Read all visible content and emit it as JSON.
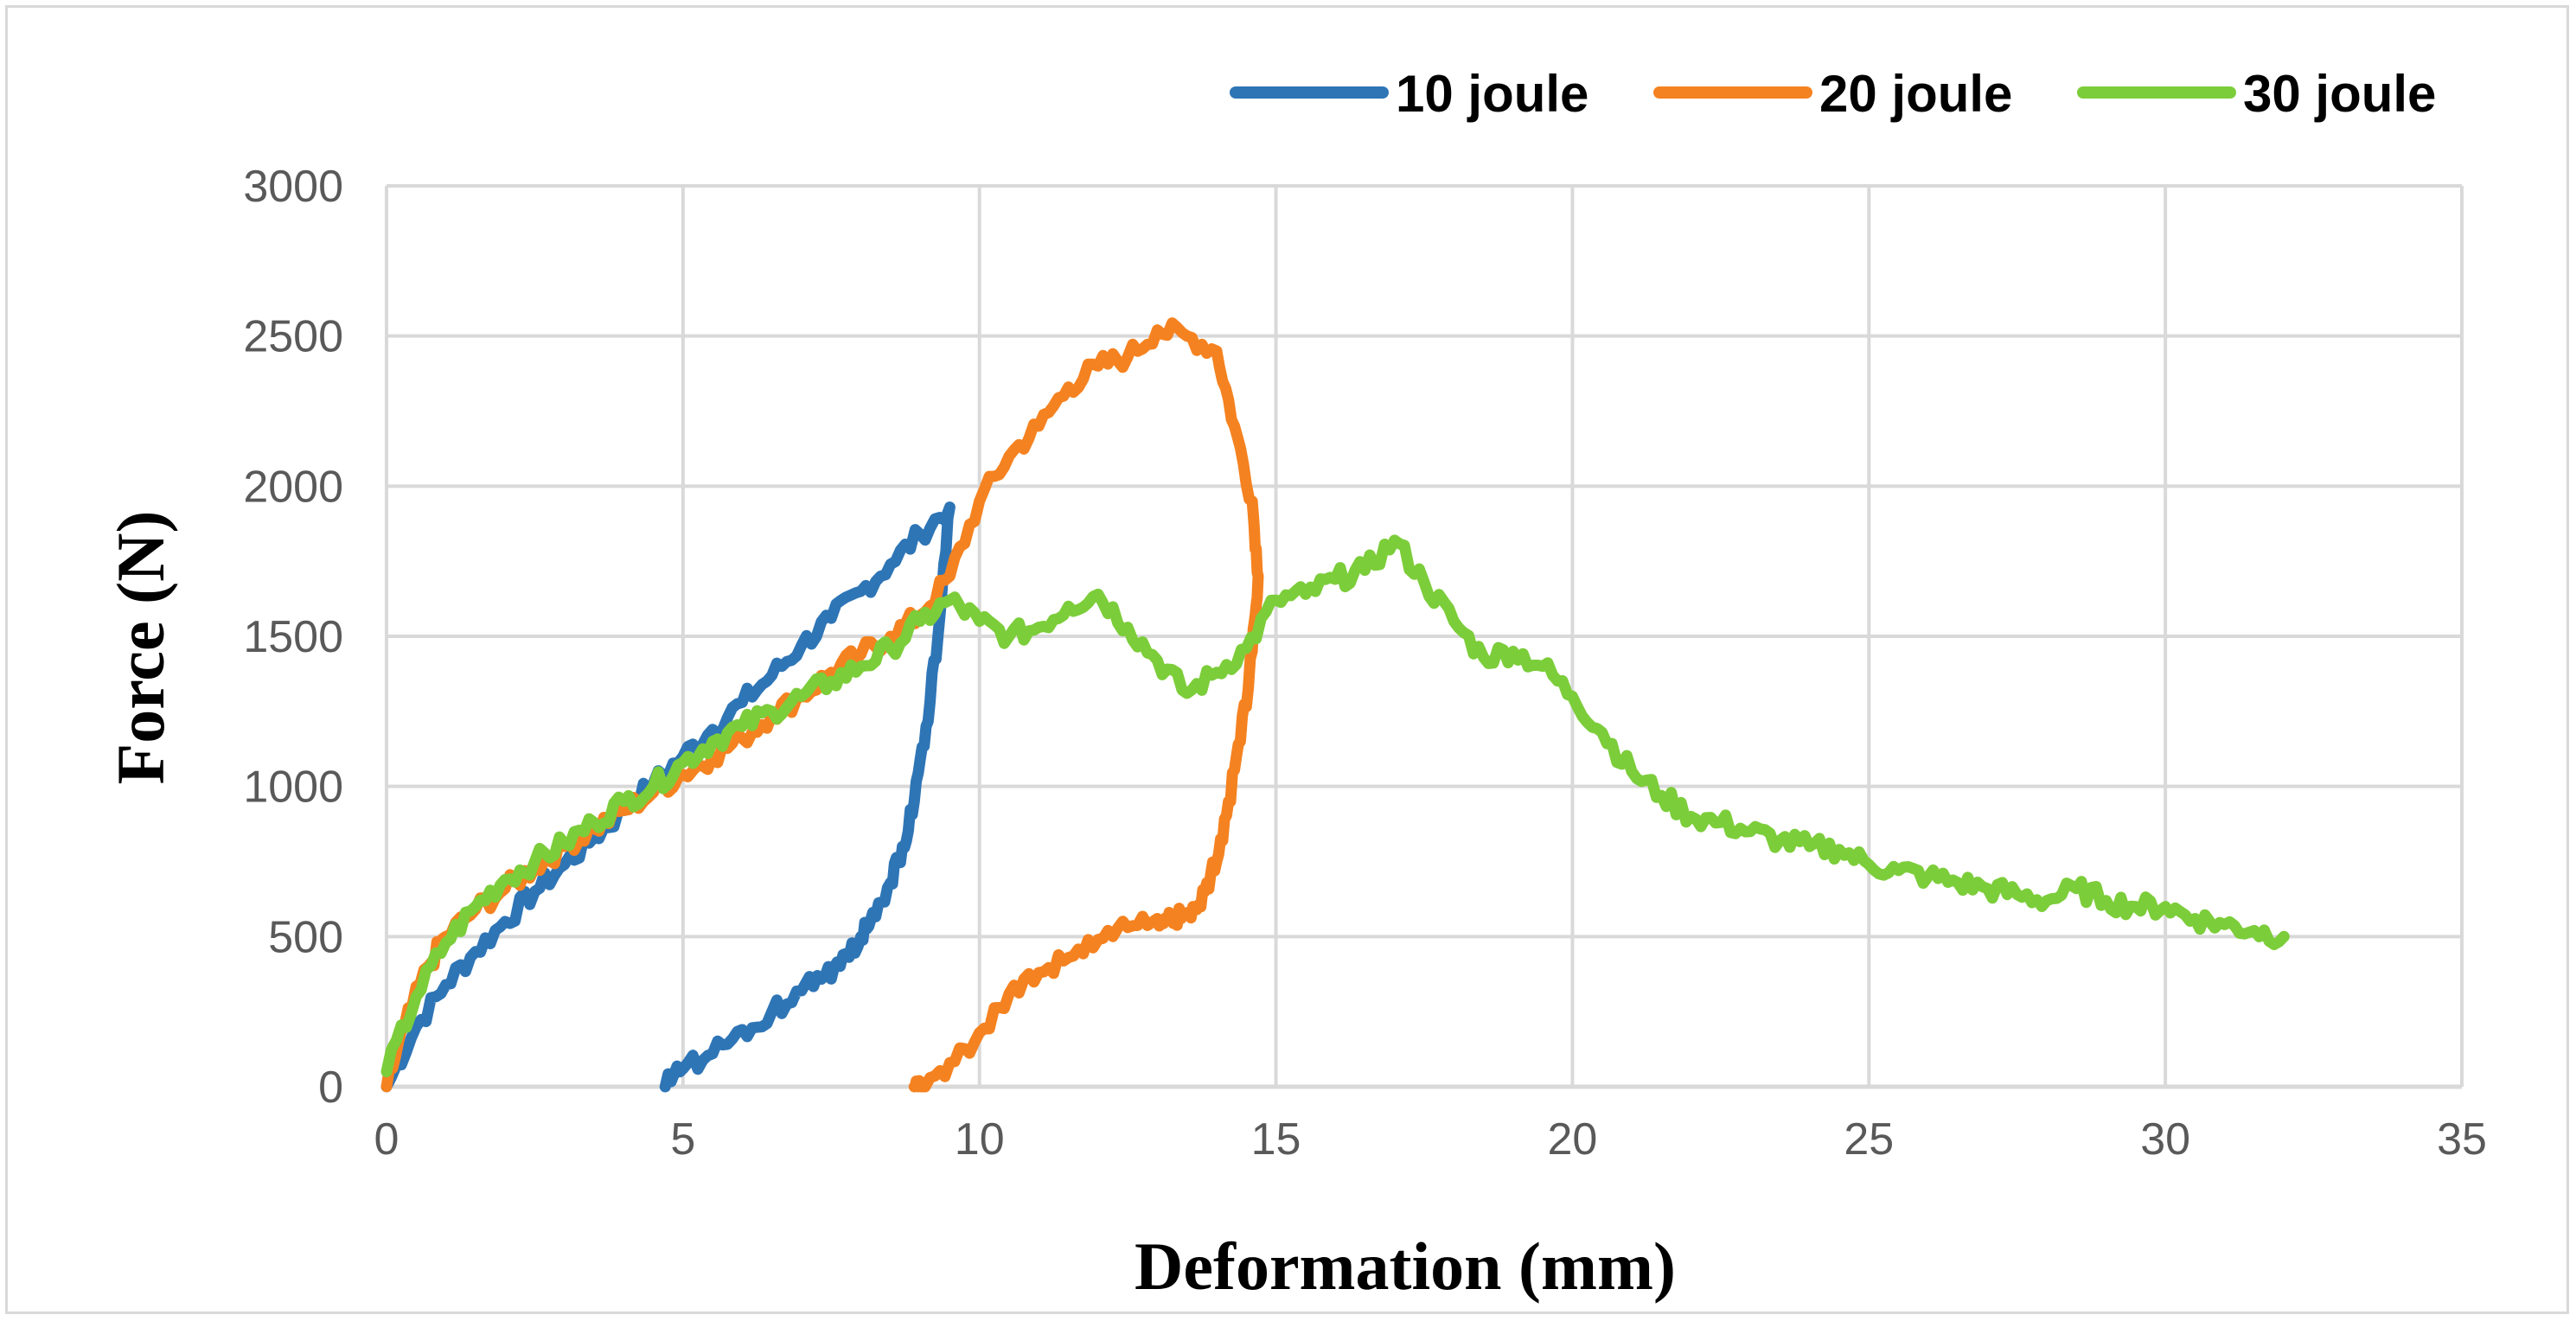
{
  "chart_data": {
    "type": "line",
    "title": "",
    "xlabel": "Deformation (mm)",
    "ylabel": "Force (N)",
    "xlim": [
      0,
      35
    ],
    "ylim": [
      0,
      3000
    ],
    "x_ticks": [
      0,
      5,
      10,
      15,
      20,
      25,
      30,
      35
    ],
    "y_ticks": [
      0,
      500,
      1000,
      1500,
      2000,
      2500,
      3000
    ],
    "grid": true,
    "legend_position": "top-right",
    "series": [
      {
        "name": "10 joule",
        "color": "#2e75b6",
        "x": [
          0,
          0.5,
          1,
          1.5,
          2,
          2.5,
          3,
          3.5,
          4,
          4.5,
          5,
          5.5,
          6,
          6.5,
          7,
          7.5,
          8,
          8.5,
          9,
          9.5,
          9.3,
          9.1,
          8.9,
          8.7,
          8.5,
          8.2,
          8.0,
          7.7,
          7.4,
          7.0,
          6.5,
          6.0,
          5.5,
          5.0,
          4.7
        ],
        "y": [
          0,
          200,
          340,
          450,
          550,
          650,
          740,
          830,
          920,
          1010,
          1100,
          1190,
          1280,
          1370,
          1470,
          1560,
          1650,
          1740,
          1840,
          1930,
          1500,
          1200,
          950,
          800,
          680,
          580,
          500,
          440,
          370,
          320,
          250,
          190,
          110,
          60,
          0
        ]
      },
      {
        "name": "20 joule",
        "color": "#f58220",
        "x": [
          0,
          0.3,
          0.7,
          1,
          1.5,
          2,
          2.5,
          3,
          3.5,
          4,
          4.5,
          5,
          5.5,
          6,
          6.5,
          7,
          7.5,
          8,
          8.5,
          9,
          9.5,
          10,
          10.5,
          11,
          11.5,
          12,
          12.5,
          13,
          13.5,
          14,
          14.3,
          14.6,
          14.7,
          14.6,
          14.4,
          14.2,
          14.0,
          13.8,
          13.6,
          13.4,
          13.2,
          13.0,
          12.5,
          12.0,
          11.5,
          11.0,
          10.5,
          10.0,
          9.5,
          9.0,
          8.9
        ],
        "y": [
          0,
          200,
          400,
          500,
          590,
          660,
          730,
          800,
          860,
          920,
          980,
          1040,
          1100,
          1160,
          1240,
          1300,
          1380,
          1440,
          1500,
          1570,
          1700,
          1950,
          2100,
          2200,
          2330,
          2400,
          2430,
          2520,
          2500,
          2450,
          2200,
          1950,
          1700,
          1450,
          1150,
          950,
          750,
          650,
          600,
          560,
          580,
          560,
          530,
          490,
          430,
          380,
          310,
          180,
          80,
          0,
          0
        ]
      },
      {
        "name": "30 joule",
        "color": "#7ccd3a",
        "x": [
          0,
          0.5,
          1,
          1.5,
          2,
          2.5,
          3,
          3.5,
          4,
          4.5,
          5,
          5.5,
          6,
          6.5,
          7,
          7.5,
          8,
          8.5,
          9,
          9.5,
          10,
          10.5,
          11,
          11.5,
          12,
          12.5,
          13,
          13.5,
          14,
          14.5,
          15,
          15.5,
          16,
          16.5,
          17,
          17.5,
          18,
          18.5,
          19,
          19.5,
          20,
          20.5,
          21,
          21.5,
          22,
          22.5,
          23,
          23.5,
          24,
          24.5,
          25,
          25.5,
          26,
          26.5,
          27,
          27.5,
          28,
          28.5,
          29,
          29.5,
          30,
          30.5,
          31,
          31.5,
          32
        ],
        "y": [
          50,
          300,
          480,
          600,
          690,
          750,
          810,
          880,
          950,
          1000,
          1080,
          1150,
          1200,
          1250,
          1300,
          1350,
          1400,
          1460,
          1550,
          1620,
          1550,
          1500,
          1530,
          1600,
          1640,
          1530,
          1420,
          1310,
          1380,
          1460,
          1620,
          1640,
          1690,
          1720,
          1820,
          1680,
          1550,
          1430,
          1450,
          1400,
          1300,
          1180,
          1050,
          970,
          900,
          880,
          850,
          820,
          800,
          790,
          740,
          720,
          700,
          680,
          660,
          640,
          620,
          660,
          620,
          600,
          600,
          560,
          540,
          520,
          500
        ]
      }
    ]
  }
}
